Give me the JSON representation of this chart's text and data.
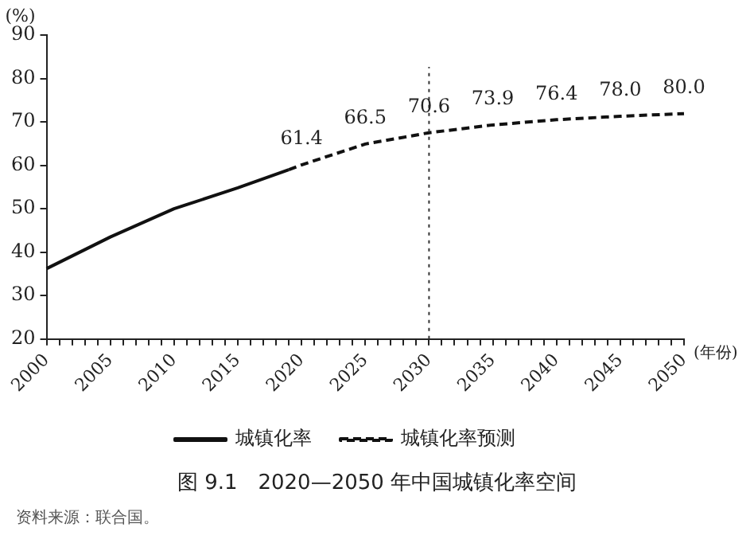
{
  "chart_data": {
    "type": "line",
    "title": "图 9.1　2020—2050 年中国城镇化率空间",
    "ylabel": "(%)",
    "xlabel": "(年份)",
    "xlim": [
      2000,
      2050
    ],
    "xticks": [
      2000,
      {
        "value": 2001,
        "label": null
      },
      {
        "value": 2002,
        "label": null
      },
      {
        "value": 2003,
        "label": null
      },
      {
        "value": 2004,
        "label": null
      },
      2005,
      {
        "value": 2006,
        "label": null
      },
      {
        "value": 2007,
        "label": null
      },
      {
        "value": 2008,
        "label": null
      },
      {
        "value": 2009,
        "label": null
      },
      2010,
      {
        "value": 2011,
        "label": null
      },
      {
        "value": 2012,
        "label": null
      },
      {
        "value": 2013,
        "label": null
      },
      {
        "value": 2014,
        "label": null
      },
      2015,
      {
        "value": 2016,
        "label": null
      },
      {
        "value": 2017,
        "label": null
      },
      {
        "value": 2018,
        "label": null
      },
      {
        "value": 2019,
        "label": null
      },
      2020,
      {
        "value": 2021,
        "label": null
      },
      {
        "value": 2022,
        "label": null
      },
      {
        "value": 2023,
        "label": null
      },
      {
        "value": 2024,
        "label": null
      },
      2025,
      {
        "value": 2026,
        "label": null
      },
      {
        "value": 2027,
        "label": null
      },
      {
        "value": 2028,
        "label": null
      },
      {
        "value": 2029,
        "label": null
      },
      2030,
      {
        "value": 2031,
        "label": null
      },
      {
        "value": 2032,
        "label": null
      },
      {
        "value": 2033,
        "label": null
      },
      {
        "value": 2034,
        "label": null
      },
      2035,
      {
        "value": 2036,
        "label": null
      },
      {
        "value": 2037,
        "label": null
      },
      {
        "value": 2038,
        "label": null
      },
      {
        "value": 2039,
        "label": null
      },
      2040,
      {
        "value": 2041,
        "label": null
      },
      {
        "value": 2042,
        "label": null
      },
      {
        "value": 2043,
        "label": null
      },
      {
        "value": 2044,
        "label": null
      },
      2045,
      {
        "value": 2046,
        "label": null
      },
      {
        "value": 2047,
        "label": null
      },
      {
        "value": 2048,
        "label": null
      },
      {
        "value": 2049,
        "label": null
      },
      2050
    ],
    "ylim": [
      20,
      90
    ],
    "yticks": [
      20,
      30,
      40,
      50,
      60,
      70,
      80,
      90
    ],
    "grid": false,
    "legend": "bottom",
    "marker": "none",
    "series": [
      {
        "name": "城镇化率",
        "color": "#111111",
        "line_style": "solid",
        "x": [
          2000,
          2005,
          2010,
          2015,
          2019
        ],
        "values": [
          36.2,
          43.5,
          50,
          54.8,
          59
        ]
      },
      {
        "name": "城镇化率预测",
        "color": "#111111",
        "line_style": "dashed",
        "x": [
          2019,
          2020,
          2025,
          2030,
          2035,
          2040,
          2045,
          2050
        ],
        "values": [
          59,
          60.1,
          64.9,
          67.5,
          69.3,
          70.5,
          71.3,
          71.9
        ]
      }
    ],
    "ref_lines": [
      {
        "axis": "x",
        "value": 2030,
        "color": "#333333",
        "line_style": "dotted"
      }
    ],
    "annotations": [
      {
        "text": "61.4",
        "x": 2020,
        "y": 60.1
      },
      {
        "text": "66.5",
        "x": 2025,
        "y": 64.9
      },
      {
        "text": "70.6",
        "x": 2030,
        "y": 67.5
      },
      {
        "text": "73.9",
        "x": 2035,
        "y": 69.3
      },
      {
        "text": "76.4",
        "x": 2040,
        "y": 70.5
      },
      {
        "text": "78.0",
        "x": 2045,
        "y": 71.3
      },
      {
        "text": "80.0",
        "x": 2050,
        "y": 71.9
      },
      "资料来源：联合国。"
    ]
  }
}
